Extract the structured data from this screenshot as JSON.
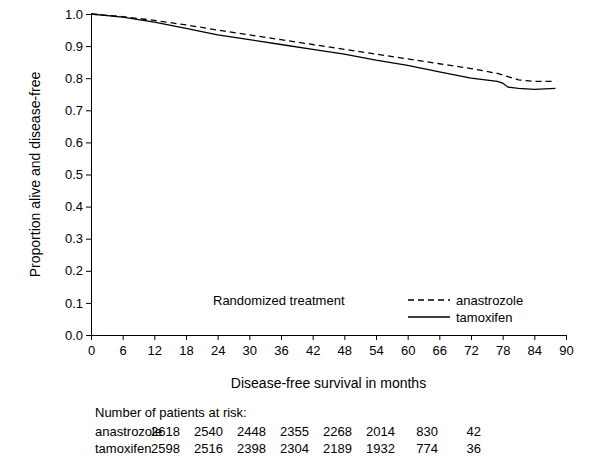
{
  "chart_data": {
    "type": "line",
    "x_label": "Disease-free survival in months",
    "y_label": "Proportion alive and disease-free",
    "x": [
      0,
      6,
      12,
      18,
      24,
      30,
      36,
      42,
      48,
      54,
      60,
      66,
      72,
      77,
      78,
      79,
      81,
      84,
      88
    ],
    "series": [
      {
        "name": "anastrozole",
        "color": "#000000",
        "line_style": "dashed",
        "values": [
          1.0,
          0.992,
          0.98,
          0.966,
          0.95,
          0.935,
          0.92,
          0.905,
          0.89,
          0.875,
          0.86,
          0.845,
          0.83,
          0.815,
          0.81,
          0.805,
          0.795,
          0.79,
          0.79
        ]
      },
      {
        "name": "tamoxifen",
        "color": "#000000",
        "line_style": "solid",
        "values": [
          1.0,
          0.99,
          0.975,
          0.955,
          0.935,
          0.92,
          0.905,
          0.89,
          0.875,
          0.856,
          0.84,
          0.82,
          0.8,
          0.79,
          0.785,
          0.772,
          0.768,
          0.765,
          0.768
        ]
      }
    ],
    "xlim": [
      0,
      90
    ],
    "ylim": [
      0,
      1
    ],
    "xticks": [
      0,
      6,
      12,
      18,
      24,
      30,
      36,
      42,
      48,
      54,
      60,
      66,
      72,
      78,
      84,
      90
    ],
    "yticks": [
      {
        "value": 0,
        "label": "0.0"
      },
      0.1,
      0.2,
      0.3,
      0.4,
      0.5,
      0.6,
      0.7,
      0.8,
      0.9,
      {
        "value": 1,
        "label": "1.0"
      }
    ],
    "grid": false,
    "legend": "lower right",
    "legend_title": "Randomized treatment",
    "risk_table": {
      "title": "Number of patients at risk:",
      "rows": [
        {
          "name": "anastrozole",
          "values": [
            2618,
            2540,
            2448,
            2355,
            2268,
            2014,
            830,
            42
          ]
        },
        {
          "name": "tamoxifen",
          "values": [
            2598,
            2516,
            2398,
            2304,
            2189,
            1932,
            774,
            36
          ]
        }
      ]
    }
  }
}
